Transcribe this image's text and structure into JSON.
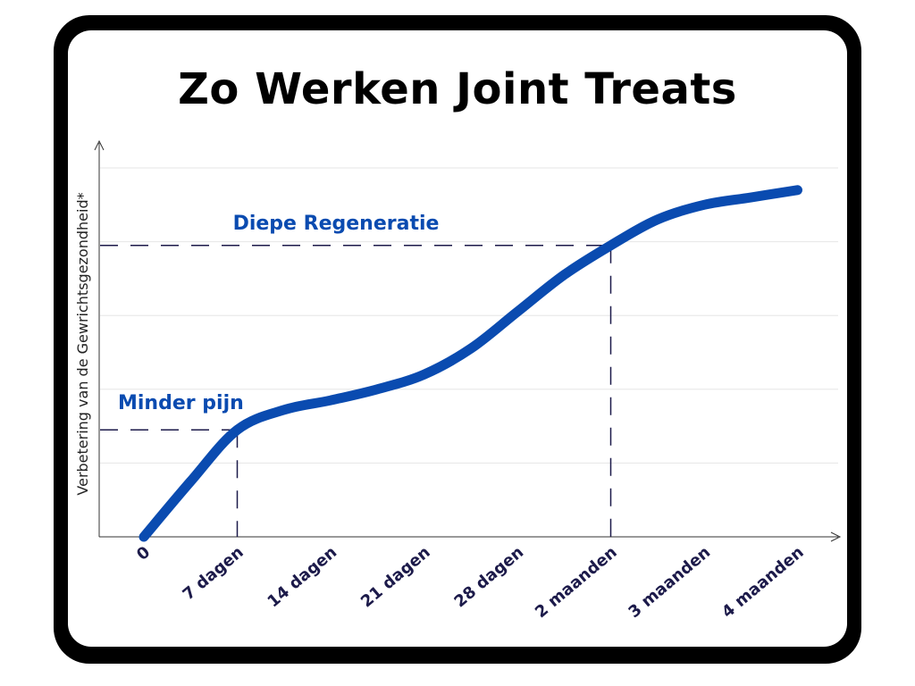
{
  "colors": {
    "frame": "#000000",
    "line": "#0a4bb0",
    "annotation": "#0a4bb0",
    "tick_text": "#1c1a4a",
    "dashed": "#1c1a4a",
    "grid": "#e6e6e6"
  },
  "chart_data": {
    "type": "line",
    "title": "Zo Werken Joint Treats",
    "xlabel": "",
    "ylabel": "Verbetering van de Gewrichtsgezondheid*",
    "categories": [
      "0",
      "7 dagen",
      "14 dagen",
      "21 dagen",
      "28 dagen",
      "2 maanden",
      "3 maanden",
      "4 maanden"
    ],
    "ylim": [
      0,
      5
    ],
    "grid": "horizontal",
    "y_ticks_labeled": false,
    "series": [
      {
        "points": [
          {
            "x": 0,
            "y": 0.0
          },
          {
            "x": 0.5,
            "y": 0.75
          },
          {
            "x": 1,
            "y": 1.45
          },
          {
            "x": 1.5,
            "y": 1.72
          },
          {
            "x": 2,
            "y": 1.85
          },
          {
            "x": 2.5,
            "y": 2.0
          },
          {
            "x": 3,
            "y": 2.2
          },
          {
            "x": 3.5,
            "y": 2.55
          },
          {
            "x": 4,
            "y": 3.05
          },
          {
            "x": 4.5,
            "y": 3.55
          },
          {
            "x": 5,
            "y": 3.95
          },
          {
            "x": 5.5,
            "y": 4.3
          },
          {
            "x": 6,
            "y": 4.5
          },
          {
            "x": 6.5,
            "y": 4.6
          },
          {
            "x": 7,
            "y": 4.7
          }
        ]
      }
    ],
    "annotations": [
      {
        "text": "Minder pijn",
        "x": 1,
        "y": 1.45
      },
      {
        "text": "Diepe Regeneratie",
        "x": 5,
        "y": 3.95
      }
    ]
  }
}
